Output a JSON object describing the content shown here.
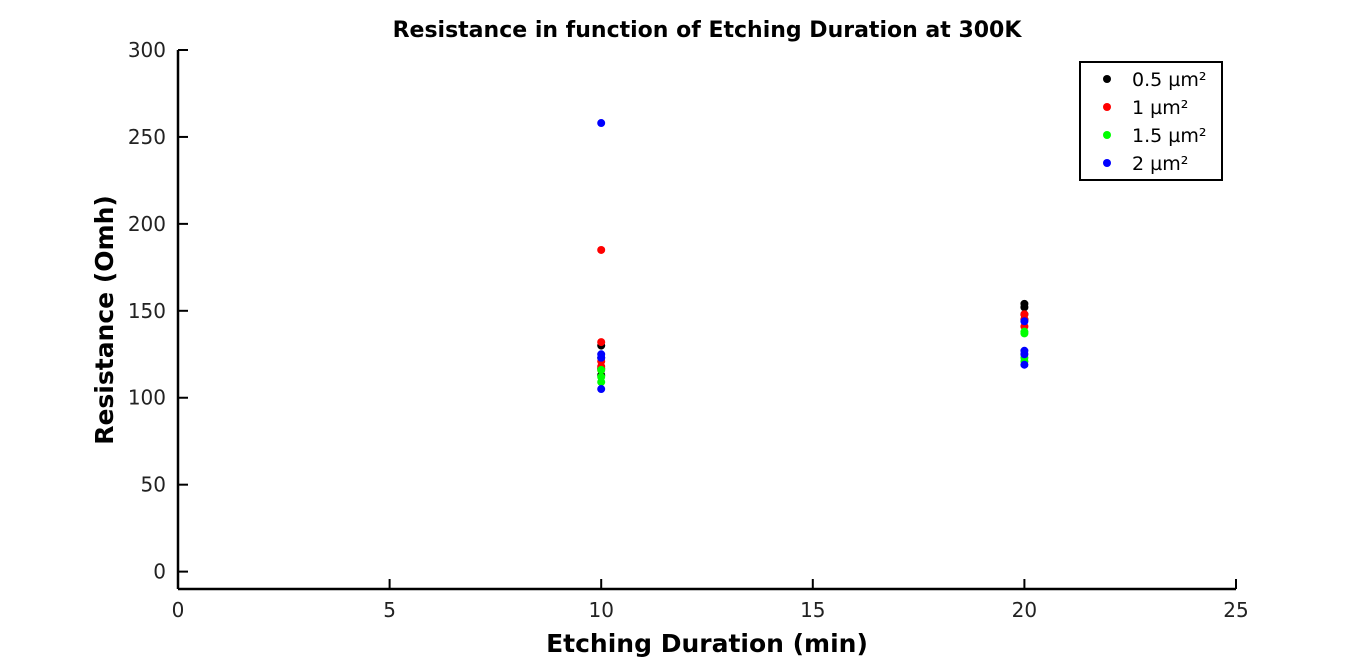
{
  "chart_data": {
    "type": "scatter",
    "title": "Resistance in function of Etching Duration at 300K",
    "xlabel": "Etching Duration (min)",
    "ylabel": "Resistance (Omh)",
    "xlim": [
      0,
      25
    ],
    "ylim": [
      -10,
      300
    ],
    "xticks": [
      0,
      5,
      10,
      15,
      20,
      25
    ],
    "yticks": [
      0,
      50,
      100,
      150,
      200,
      250,
      300
    ],
    "grid": false,
    "legend_position": "top-right",
    "series": [
      {
        "name": "0.5 µm²",
        "color": "#000000",
        "points": [
          [
            10,
            130
          ],
          [
            10,
            113
          ],
          [
            10,
            117
          ],
          [
            10,
            123
          ],
          [
            20,
            154
          ],
          [
            20,
            152
          ],
          [
            20,
            148
          ],
          [
            20,
            145
          ]
        ]
      },
      {
        "name": "1 µm²",
        "color": "#ff0000",
        "points": [
          [
            10,
            185
          ],
          [
            10,
            132
          ],
          [
            10,
            121
          ],
          [
            10,
            118
          ],
          [
            10,
            116
          ],
          [
            20,
            148
          ],
          [
            20,
            145
          ],
          [
            20,
            141
          ]
        ]
      },
      {
        "name": "1.5 µm²",
        "color": "#00ff00",
        "points": [
          [
            10,
            116
          ],
          [
            10,
            112
          ],
          [
            10,
            109
          ],
          [
            20,
            138
          ],
          [
            20,
            137
          ],
          [
            20,
            123
          ],
          [
            20,
            121
          ]
        ]
      },
      {
        "name": "2 µm²",
        "color": "#0000ff",
        "points": [
          [
            10,
            258
          ],
          [
            10,
            125
          ],
          [
            10,
            123
          ],
          [
            10,
            105
          ],
          [
            20,
            144
          ],
          [
            20,
            127
          ],
          [
            20,
            125
          ],
          [
            20,
            119
          ]
        ]
      }
    ]
  }
}
